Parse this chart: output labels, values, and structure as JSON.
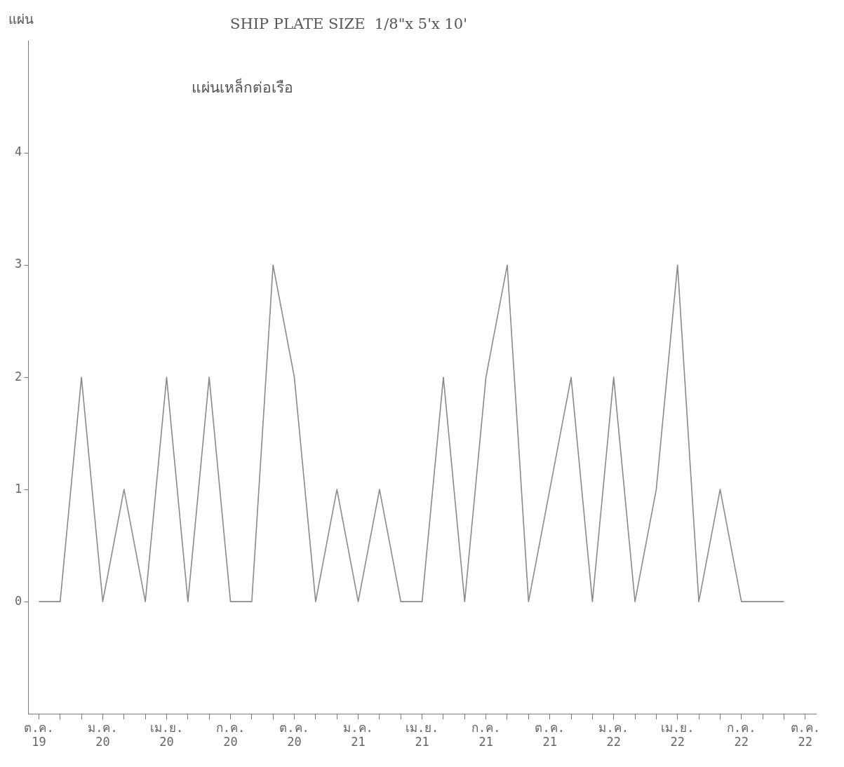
{
  "chart_data": {
    "type": "line",
    "title": "SHIP PLATE SIZE  1/8\"x 5'x 10'",
    "subtitle": "แผ่นเหล็กต่อเรือ",
    "ylabel": "แผ่น",
    "categories": [
      "ต.ค. 19",
      null,
      null,
      "ม.ค. 20",
      null,
      null,
      "เม.ย. 20",
      null,
      null,
      "ก.ค. 20",
      null,
      null,
      "ต.ค. 20",
      null,
      null,
      "ม.ค. 21",
      null,
      null,
      "เม.ย. 21",
      null,
      null,
      "ก.ค. 21",
      null,
      null,
      "ต.ค. 21",
      null,
      null,
      "ม.ค. 22",
      null,
      null,
      "เม.ย. 22",
      null,
      null,
      "ก.ค. 22",
      null,
      null,
      "ต.ค. 22"
    ],
    "series": [
      {
        "color": "#8a8a8a",
        "values": [
          0,
          0,
          2,
          0,
          1,
          0,
          2,
          0,
          2,
          0,
          0,
          3,
          2,
          0,
          1,
          0,
          1,
          0,
          0,
          2,
          0,
          2,
          3,
          0,
          1,
          2,
          0,
          2,
          0,
          1,
          3,
          0,
          1,
          0,
          0,
          0,
          null
        ]
      }
    ],
    "ylim": [
      -1,
      5
    ],
    "yticks": [
      0,
      1,
      2,
      3,
      4
    ]
  }
}
